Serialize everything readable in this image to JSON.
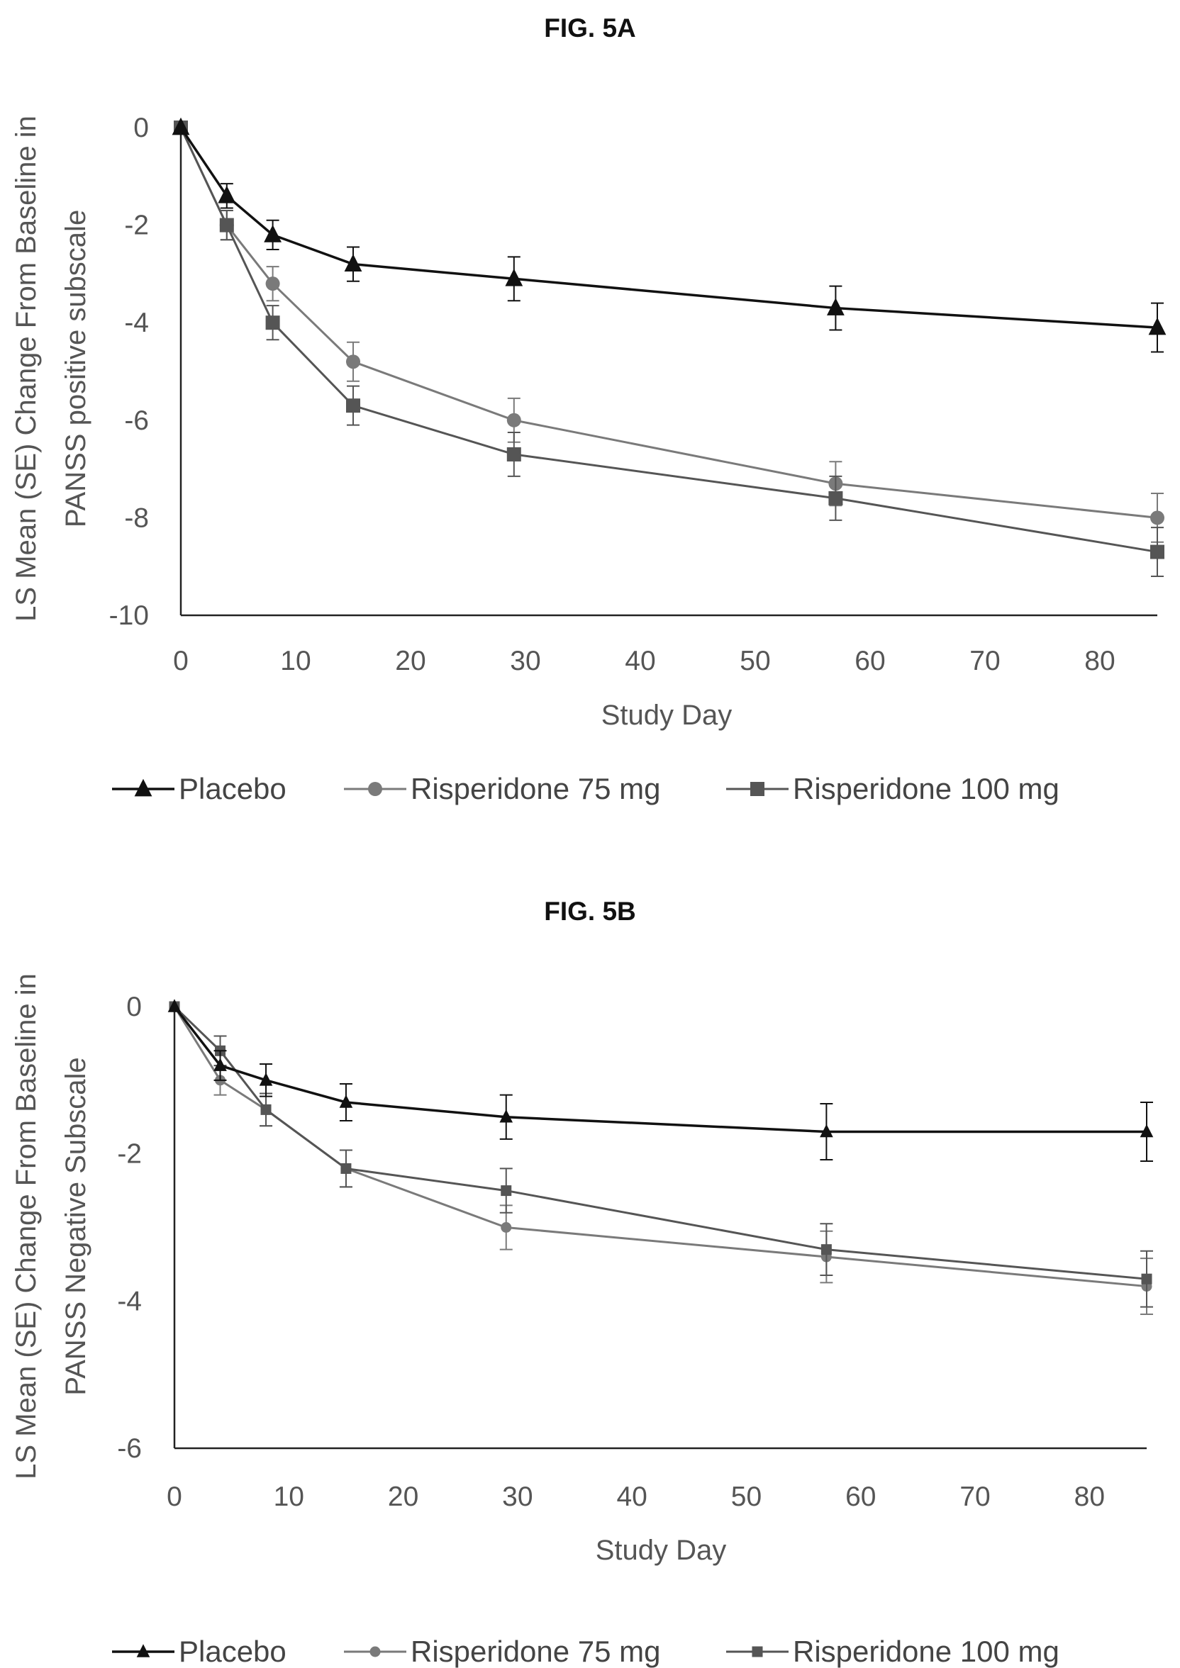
{
  "chart_data": [
    {
      "type": "line",
      "title": "FIG. 5A",
      "xlabel": "Study Day",
      "ylabel_lines": [
        "LS Mean (SE) Change From Baseline in",
        "PANSS positive subscale"
      ],
      "xlim": [
        0,
        85
      ],
      "ylim": [
        -10,
        0
      ],
      "xticks": [
        0,
        10,
        20,
        30,
        40,
        50,
        60,
        70,
        80
      ],
      "yticks": [
        0,
        -2,
        -4,
        -6,
        -8,
        -10
      ],
      "grid": false,
      "legend_position": "bottom",
      "x": [
        0,
        4,
        8,
        15,
        29,
        57,
        85
      ],
      "series": [
        {
          "name": "Placebo",
          "marker": "triangle",
          "color": "#111111",
          "values": [
            0,
            -1.4,
            -2.2,
            -2.8,
            -3.1,
            -3.7,
            -4.1
          ],
          "errors": [
            0,
            0.25,
            0.3,
            0.35,
            0.45,
            0.45,
            0.5
          ]
        },
        {
          "name": "Risperidone 75 mg",
          "marker": "circle",
          "color": "#7a7a7a",
          "values": [
            0,
            -2.0,
            -3.2,
            -4.8,
            -6.0,
            -7.3,
            -8.0
          ],
          "errors": [
            0,
            0.3,
            0.35,
            0.4,
            0.45,
            0.45,
            0.5
          ]
        },
        {
          "name": "Risperidone 100 mg",
          "marker": "square",
          "color": "#555555",
          "values": [
            0,
            -2.0,
            -4.0,
            -5.7,
            -6.7,
            -7.6,
            -8.7
          ],
          "errors": [
            0,
            0.3,
            0.35,
            0.4,
            0.45,
            0.45,
            0.5
          ]
        }
      ]
    },
    {
      "type": "line",
      "title": "FIG. 5B",
      "xlabel": "Study Day",
      "ylabel_lines": [
        "LS Mean (SE) Change From Baseline in",
        "PANSS Negative Subscale"
      ],
      "xlim": [
        0,
        85
      ],
      "ylim": [
        -6,
        0
      ],
      "xticks": [
        0,
        10,
        20,
        30,
        40,
        50,
        60,
        70,
        80
      ],
      "yticks": [
        0,
        -2,
        -4,
        -6
      ],
      "grid": false,
      "legend_position": "bottom",
      "x": [
        0,
        4,
        8,
        15,
        29,
        57,
        85
      ],
      "series": [
        {
          "name": "Placebo",
          "marker": "triangle",
          "color": "#111111",
          "values": [
            0,
            -0.8,
            -1.0,
            -1.3,
            -1.5,
            -1.7,
            -1.7
          ],
          "errors": [
            0,
            0.2,
            0.22,
            0.25,
            0.3,
            0.38,
            0.4
          ]
        },
        {
          "name": "Risperidone 75 mg",
          "marker": "circle",
          "color": "#7a7a7a",
          "values": [
            0,
            -1.0,
            -1.4,
            -2.2,
            -3.0,
            -3.4,
            -3.8
          ],
          "errors": [
            0,
            0.2,
            0.22,
            0.25,
            0.3,
            0.35,
            0.38
          ]
        },
        {
          "name": "Risperidone 100 mg",
          "marker": "square",
          "color": "#555555",
          "values": [
            0,
            -0.6,
            -1.4,
            -2.2,
            -2.5,
            -3.3,
            -3.7
          ],
          "errors": [
            0,
            0.2,
            0.22,
            0.25,
            0.3,
            0.35,
            0.38
          ]
        }
      ]
    }
  ]
}
